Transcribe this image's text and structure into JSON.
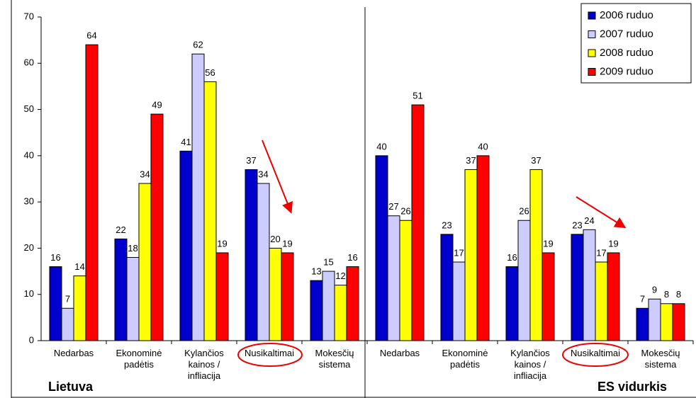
{
  "chart_data": {
    "type": "bar",
    "categories": [
      "Nedarbas",
      "Ekonominė padėtis",
      "Kylančios kainos / infliacija",
      "Nusikaltimai",
      "Mokesčių sistema",
      "Nedarbas",
      "Ekonominė padėtis",
      "Kylančios kainos / infliacija",
      "Nusikaltimai",
      "Mokesčių sistema"
    ],
    "series": [
      {
        "name": "2006 ruduo",
        "color": "#0000cc",
        "values": [
          16,
          22,
          41,
          37,
          13,
          40,
          23,
          16,
          23,
          7
        ]
      },
      {
        "name": "2007 ruduo",
        "color": "#ccccff",
        "values": [
          7,
          18,
          62,
          34,
          15,
          27,
          17,
          26,
          24,
          9
        ]
      },
      {
        "name": "2008 ruduo",
        "color": "#ffff00",
        "values": [
          14,
          34,
          56,
          20,
          12,
          26,
          37,
          37,
          17,
          8
        ]
      },
      {
        "name": "2009 ruduo",
        "color": "#ff0000",
        "values": [
          64,
          49,
          19,
          19,
          16,
          51,
          40,
          19,
          19,
          8
        ]
      }
    ],
    "annotations": [
      "Lietuva",
      "ES vidurkis"
    ],
    "ylim": [
      0,
      70
    ],
    "yticks": [
      0,
      10,
      20,
      30,
      40,
      50,
      60,
      70
    ],
    "legend": "upper right"
  }
}
